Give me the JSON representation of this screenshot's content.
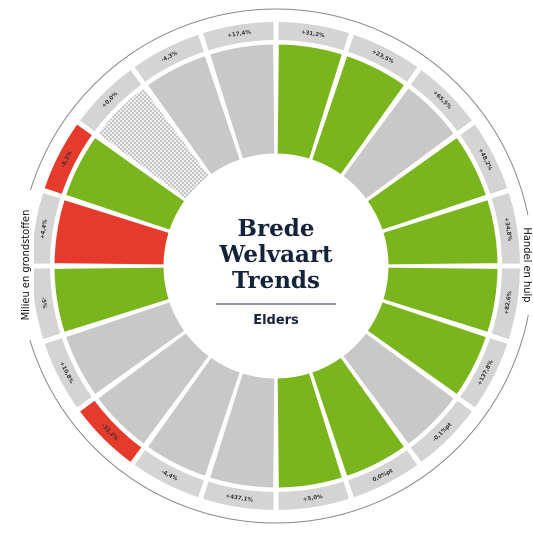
{
  "chart_data": {
    "type": "radial",
    "title_lines": [
      "Brede",
      "Welvaart",
      "Trends"
    ],
    "subtitle": "Elders",
    "side_labels": {
      "right": "Handel en hulp",
      "left": "Milieu en grondstoffen"
    },
    "colors": {
      "green": "#7ab51d",
      "gray": "#c8c8c8",
      "red": "#e53a2c",
      "tag": "#d4d4d4"
    },
    "segments": [
      {
        "label": "+31,2%",
        "bar": "green",
        "tag": "gray"
      },
      {
        "label": "+23,5%",
        "bar": "green",
        "tag": "gray"
      },
      {
        "label": "+65,5%",
        "bar": "gray",
        "tag": "gray"
      },
      {
        "label": "+48,2%",
        "bar": "green",
        "tag": "gray"
      },
      {
        "label": "+34,8%",
        "bar": "green",
        "tag": "gray"
      },
      {
        "label": "+82,6%",
        "bar": "green",
        "tag": "gray"
      },
      {
        "label": "+137,8%",
        "bar": "green",
        "tag": "gray"
      },
      {
        "label": "-0,1%pt",
        "bar": "gray",
        "tag": "gray"
      },
      {
        "label": "0,0%pt",
        "bar": "green",
        "tag": "gray"
      },
      {
        "label": "+5,0%",
        "bar": "green",
        "tag": "gray"
      },
      {
        "label": "+437,1%",
        "bar": "gray",
        "tag": "gray"
      },
      {
        "label": "-4,4%",
        "bar": "gray",
        "tag": "gray"
      },
      {
        "label": "-32,2%",
        "bar": "gray",
        "tag": "red"
      },
      {
        "label": "+10,8%",
        "bar": "gray",
        "tag": "gray"
      },
      {
        "label": "-5%",
        "bar": "green",
        "tag": "gray"
      },
      {
        "label": "+4,4%",
        "bar": "red",
        "tag": "gray"
      },
      {
        "label": "-8,1%",
        "bar": "green",
        "tag": "red"
      },
      {
        "label": "+0,0%",
        "bar": "dotted",
        "tag": "gray"
      },
      {
        "label": "-4,3%",
        "bar": "gray",
        "tag": "gray"
      },
      {
        "label": "+17,4%",
        "bar": "gray",
        "tag": "gray"
      }
    ]
  }
}
